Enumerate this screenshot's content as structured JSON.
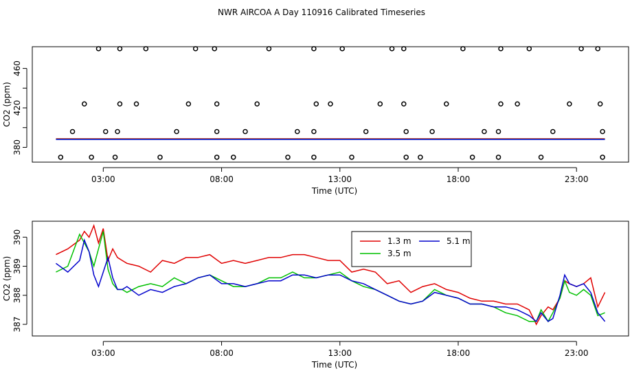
{
  "title": "NWR AIRCOA A  Day 110916  Calibrated Timeseries",
  "chart_data": [
    {
      "type": "scatter+line",
      "xlabel": "Time (UTC)",
      "ylabel": "CO2 (ppm)",
      "xlim": [
        0,
        25.2
      ],
      "ylim": [
        365,
        482
      ],
      "x_ticks": [
        3,
        8,
        13,
        18,
        23
      ],
      "x_tick_labels": [
        "03:00",
        "08:00",
        "13:00",
        "18:00",
        "23:00"
      ],
      "y_ticks": [
        380,
        420,
        460
      ],
      "y_tick_labels": [
        "380",
        "420",
        "460"
      ],
      "y_minor_ticks": [
        400,
        440
      ],
      "grid": false,
      "scatter_points": [
        [
          1.2,
          370
        ],
        [
          2.5,
          370
        ],
        [
          3.5,
          370
        ],
        [
          5.4,
          370
        ],
        [
          7.8,
          370
        ],
        [
          8.5,
          370
        ],
        [
          10.8,
          370
        ],
        [
          11.9,
          370
        ],
        [
          13.5,
          370
        ],
        [
          15.8,
          370
        ],
        [
          16.4,
          370
        ],
        [
          18.6,
          370
        ],
        [
          19.7,
          370
        ],
        [
          21.5,
          370
        ],
        [
          24.1,
          370
        ],
        [
          1.7,
          396
        ],
        [
          3.1,
          396
        ],
        [
          3.6,
          396
        ],
        [
          6.1,
          396
        ],
        [
          7.8,
          396
        ],
        [
          9.0,
          396
        ],
        [
          11.2,
          396
        ],
        [
          11.9,
          396
        ],
        [
          14.1,
          396
        ],
        [
          15.8,
          396
        ],
        [
          16.9,
          396
        ],
        [
          19.1,
          396
        ],
        [
          19.7,
          396
        ],
        [
          22.0,
          396
        ],
        [
          24.1,
          396
        ],
        [
          2.2,
          424
        ],
        [
          3.7,
          424
        ],
        [
          4.4,
          424
        ],
        [
          6.6,
          424
        ],
        [
          7.8,
          424
        ],
        [
          9.5,
          424
        ],
        [
          12.0,
          424
        ],
        [
          12.6,
          424
        ],
        [
          14.7,
          424
        ],
        [
          15.7,
          424
        ],
        [
          17.5,
          424
        ],
        [
          19.8,
          424
        ],
        [
          20.5,
          424
        ],
        [
          22.7,
          424
        ],
        [
          24.0,
          424
        ],
        [
          2.8,
          480
        ],
        [
          3.7,
          480
        ],
        [
          4.8,
          480
        ],
        [
          6.9,
          480
        ],
        [
          7.7,
          480
        ],
        [
          10.0,
          480
        ],
        [
          11.9,
          480
        ],
        [
          13.1,
          480
        ],
        [
          15.2,
          480
        ],
        [
          15.7,
          480
        ],
        [
          18.2,
          480
        ],
        [
          19.8,
          480
        ],
        [
          21.0,
          480
        ],
        [
          23.2,
          480
        ],
        [
          23.9,
          480
        ]
      ],
      "flat_lines": [
        {
          "name": "1.3 m",
          "color": "#e00000",
          "value": 388.7
        },
        {
          "name": "3.5 m",
          "color": "#00c000",
          "value": 388.2
        },
        {
          "name": "5.1 m",
          "color": "#0000cc",
          "value": 388.1
        }
      ]
    },
    {
      "type": "line",
      "xlabel": "Time (UTC)",
      "ylabel": "CO2 (ppm)",
      "xlim": [
        0,
        25.2
      ],
      "ylim": [
        386.6,
        390.55
      ],
      "x_ticks": [
        3,
        8,
        13,
        18,
        23
      ],
      "x_tick_labels": [
        "03:00",
        "08:00",
        "13:00",
        "18:00",
        "23:00"
      ],
      "y_ticks": [
        387,
        388,
        389,
        390
      ],
      "y_tick_labels": [
        "387",
        "388",
        "389",
        "390"
      ],
      "legend_position": "top-center",
      "legend": [
        "1.3 m",
        "3.5 m",
        "5.1 m"
      ],
      "series": [
        {
          "name": "1.3 m",
          "color": "#e00000",
          "x": [
            1.0,
            1.5,
            2.0,
            2.2,
            2.4,
            2.6,
            2.8,
            3.0,
            3.2,
            3.4,
            3.6,
            3.8,
            4.0,
            4.5,
            5.0,
            5.5,
            6.0,
            6.5,
            7.0,
            7.5,
            8.0,
            8.5,
            9.0,
            9.5,
            10.0,
            10.5,
            11.0,
            11.5,
            12.0,
            12.5,
            13.0,
            13.5,
            14.0,
            14.5,
            15.0,
            15.5,
            16.0,
            16.5,
            17.0,
            17.5,
            18.0,
            18.5,
            19.0,
            19.5,
            20.0,
            20.5,
            21.0,
            21.3,
            21.5,
            21.8,
            22.0,
            22.3,
            22.5,
            22.7,
            23.0,
            23.3,
            23.6,
            23.9,
            24.2
          ],
          "values": [
            389.4,
            389.6,
            389.9,
            390.2,
            390.0,
            390.4,
            389.8,
            390.3,
            389.2,
            389.6,
            389.3,
            389.2,
            389.1,
            389.0,
            388.8,
            389.2,
            389.1,
            389.3,
            389.3,
            389.4,
            389.1,
            389.2,
            389.1,
            389.2,
            389.3,
            389.3,
            389.4,
            389.4,
            389.3,
            389.2,
            389.2,
            388.8,
            388.9,
            388.8,
            388.4,
            388.5,
            388.1,
            388.3,
            388.4,
            388.2,
            388.1,
            387.9,
            387.8,
            387.8,
            387.7,
            387.7,
            387.5,
            387.0,
            387.3,
            387.6,
            387.5,
            387.9,
            388.5,
            388.4,
            388.3,
            388.4,
            388.6,
            387.6,
            388.1
          ]
        },
        {
          "name": "3.5 m",
          "color": "#00c000",
          "x": [
            1.0,
            1.5,
            2.0,
            2.2,
            2.4,
            2.6,
            2.8,
            3.0,
            3.2,
            3.4,
            3.6,
            3.8,
            4.0,
            4.5,
            5.0,
            5.5,
            6.0,
            6.5,
            7.0,
            7.5,
            8.0,
            8.5,
            9.0,
            9.5,
            10.0,
            10.5,
            11.0,
            11.5,
            12.0,
            12.5,
            13.0,
            13.5,
            14.0,
            14.5,
            15.0,
            15.5,
            16.0,
            16.5,
            17.0,
            17.5,
            18.0,
            18.5,
            19.0,
            19.5,
            20.0,
            20.5,
            21.0,
            21.3,
            21.5,
            21.8,
            22.0,
            22.3,
            22.5,
            22.7,
            23.0,
            23.3,
            23.6,
            23.9,
            24.2
          ],
          "values": [
            388.8,
            389.0,
            390.1,
            389.8,
            389.5,
            389.0,
            389.6,
            390.2,
            388.9,
            388.4,
            388.2,
            388.2,
            388.1,
            388.3,
            388.4,
            388.3,
            388.6,
            388.4,
            388.6,
            388.7,
            388.5,
            388.3,
            388.3,
            388.4,
            388.6,
            388.6,
            388.8,
            388.6,
            388.6,
            388.7,
            388.8,
            388.5,
            388.3,
            388.2,
            388.0,
            387.8,
            387.7,
            387.8,
            388.2,
            388.0,
            387.9,
            387.7,
            387.7,
            387.6,
            387.4,
            387.3,
            387.1,
            387.1,
            387.5,
            387.1,
            387.4,
            387.9,
            388.5,
            388.1,
            388.0,
            388.2,
            388.0,
            387.3,
            387.4
          ]
        },
        {
          "name": "5.1 m",
          "color": "#0000cc",
          "x": [
            1.0,
            1.5,
            2.0,
            2.2,
            2.4,
            2.6,
            2.8,
            3.0,
            3.2,
            3.4,
            3.6,
            3.8,
            4.0,
            4.5,
            5.0,
            5.5,
            6.0,
            6.5,
            7.0,
            7.5,
            8.0,
            8.5,
            9.0,
            9.5,
            10.0,
            10.5,
            11.0,
            11.5,
            12.0,
            12.5,
            13.0,
            13.5,
            14.0,
            14.5,
            15.0,
            15.5,
            16.0,
            16.5,
            17.0,
            17.5,
            18.0,
            18.5,
            19.0,
            19.5,
            20.0,
            20.5,
            21.0,
            21.3,
            21.5,
            21.8,
            22.0,
            22.3,
            22.5,
            22.7,
            23.0,
            23.3,
            23.6,
            23.9,
            24.2
          ],
          "values": [
            389.1,
            388.8,
            389.2,
            389.9,
            389.5,
            388.7,
            388.3,
            388.8,
            389.3,
            388.6,
            388.2,
            388.2,
            388.3,
            388.0,
            388.2,
            388.1,
            388.3,
            388.4,
            388.6,
            388.7,
            388.4,
            388.4,
            388.3,
            388.4,
            388.5,
            388.5,
            388.7,
            388.7,
            388.6,
            388.7,
            388.7,
            388.5,
            388.4,
            388.2,
            388.0,
            387.8,
            387.7,
            387.8,
            388.1,
            388.0,
            387.9,
            387.7,
            387.7,
            387.6,
            387.6,
            387.5,
            387.3,
            387.1,
            387.4,
            387.1,
            387.2,
            388.0,
            388.7,
            388.4,
            388.3,
            388.4,
            388.1,
            387.4,
            387.1
          ]
        }
      ]
    }
  ]
}
